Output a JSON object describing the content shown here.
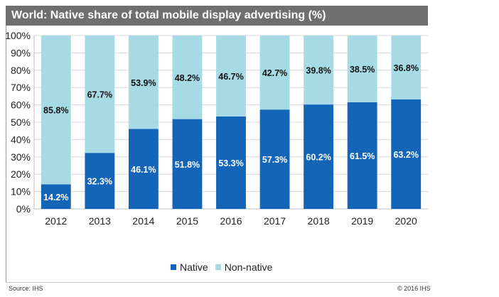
{
  "header": {
    "title": "World: Native share of total mobile display advertising (%)"
  },
  "footer": {
    "source": "Source: IHS",
    "copyright": "© 2016 IHS"
  },
  "colors": {
    "native": "#1465b8",
    "non_native": "#a6dbe6",
    "grid": "#d9d9d9"
  },
  "chart_data": {
    "type": "bar",
    "stacked": true,
    "title": "World: Native share of total mobile display advertising (%)",
    "categories": [
      "2012",
      "2013",
      "2014",
      "2015",
      "2016",
      "2017",
      "2018",
      "2019",
      "2020"
    ],
    "series": [
      {
        "name": "Native",
        "values": [
          14.2,
          32.3,
          46.1,
          51.8,
          53.3,
          57.3,
          60.2,
          61.5,
          63.2
        ],
        "labels": [
          "14.2%",
          "32.3%",
          "46.1%",
          "51.8%",
          "53.3%",
          "57.3%",
          "60.2%",
          "61.5%",
          "63.2%"
        ]
      },
      {
        "name": "Non-native",
        "values": [
          85.8,
          67.7,
          53.9,
          48.2,
          46.7,
          42.7,
          39.8,
          38.5,
          36.8
        ],
        "labels": [
          "85.8%",
          "67.7%",
          "53.9%",
          "48.2%",
          "46.7%",
          "42.7%",
          "39.8%",
          "38.5%",
          "36.8%"
        ]
      }
    ],
    "ylim": [
      0,
      100
    ],
    "yticks": [
      "0%",
      "10%",
      "20%",
      "30%",
      "40%",
      "50%",
      "60%",
      "70%",
      "80%",
      "90%",
      "100%"
    ],
    "grid": true,
    "legend": "bottom"
  }
}
